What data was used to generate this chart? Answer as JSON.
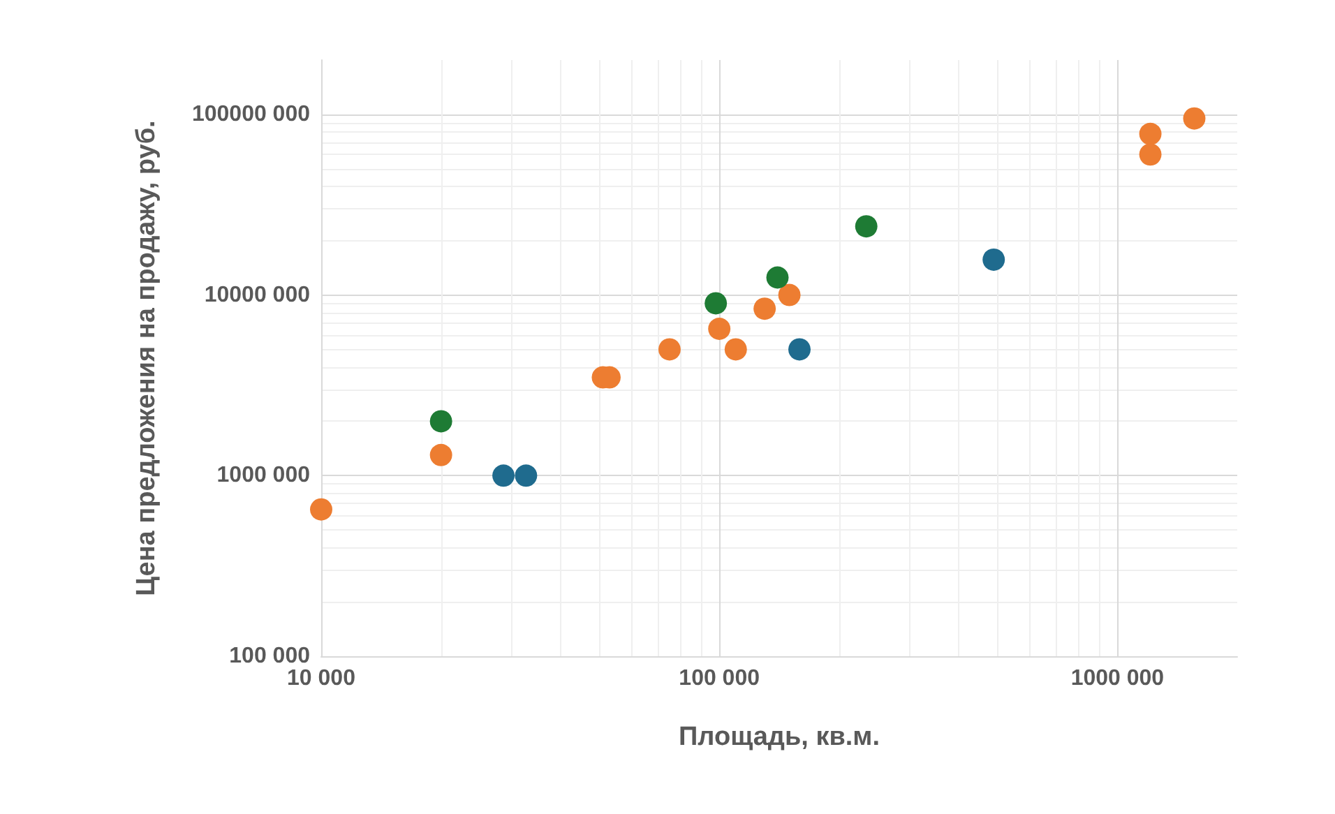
{
  "chart_data": {
    "type": "scatter",
    "xlabel": "Площадь, кв.м.",
    "ylabel": "Цена предложения на продажу, руб.",
    "log": "xy",
    "grid": true,
    "marker": "circle",
    "xlim": [
      10000,
      2000000
    ],
    "xticks": [
      {
        "value": 10000,
        "label": "10 000"
      },
      {
        "value": 100000,
        "label": "100 000"
      },
      {
        "value": 1000000,
        "label": "1000 000"
      }
    ],
    "ylim": [
      100000,
      200000000
    ],
    "yticks": [
      {
        "value": 100000,
        "label": "100 000"
      },
      {
        "value": 1000000,
        "label": "1000 000"
      },
      {
        "value": 10000000,
        "label": "10000 000"
      },
      {
        "value": 100000000,
        "label": "100000 000"
      }
    ],
    "series": [
      {
        "color": "#ed7d31",
        "x": [
          10000,
          20000,
          51000,
          53000,
          75000,
          100000,
          110000,
          130000,
          150000,
          1210000,
          1210000,
          1560000
        ],
        "values": [
          650000,
          1300000,
          3500000,
          3500000,
          5000000,
          6500000,
          5000000,
          8400000,
          10000000,
          78000000,
          60000000,
          95000000
        ]
      },
      {
        "color": "#1e7b34",
        "x": [
          20000,
          98000,
          140000,
          234000
        ],
        "values": [
          2000000,
          9000000,
          12500000,
          24000000
        ]
      },
      {
        "color": "#1f6b8e",
        "x": [
          28700,
          32700,
          159000,
          489000
        ],
        "values": [
          1000000,
          1000000,
          5000000,
          15700000
        ]
      }
    ]
  }
}
